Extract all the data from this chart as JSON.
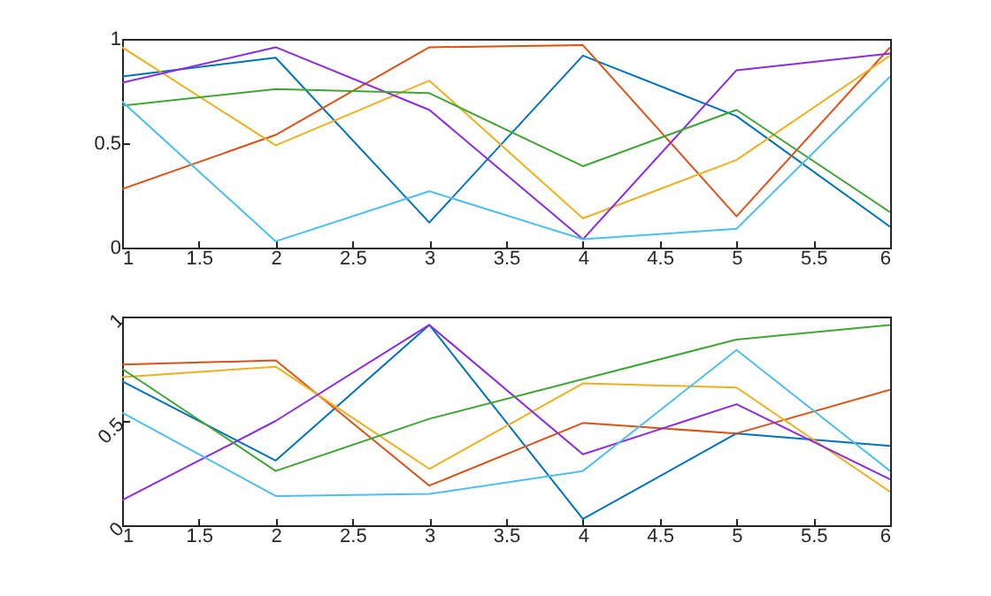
{
  "chart_data": [
    {
      "type": "line",
      "x": [
        1,
        2,
        3,
        4,
        5,
        6
      ],
      "xlim": [
        1,
        6
      ],
      "xticks": [
        1,
        1.5,
        2,
        2.5,
        3,
        3.5,
        4,
        4.5,
        5,
        5.5,
        6
      ],
      "ylim": [
        0,
        1
      ],
      "yticks": [
        0,
        0.5,
        1
      ],
      "grid": false,
      "marker": "none",
      "line_style": "solid",
      "series": [
        {
          "color": "#0072bd",
          "values": [
            0.82,
            0.91,
            0.12,
            0.92,
            0.63,
            0.1
          ]
        },
        {
          "color": "#d95319",
          "values": [
            0.28,
            0.54,
            0.96,
            0.97,
            0.15,
            0.96
          ]
        },
        {
          "color": "#edb120",
          "values": [
            0.96,
            0.49,
            0.8,
            0.14,
            0.42,
            0.92
          ]
        },
        {
          "color": "#8a2be2",
          "values": [
            0.79,
            0.96,
            0.66,
            0.04,
            0.85,
            0.93
          ]
        },
        {
          "color": "#3fa535",
          "values": [
            0.68,
            0.76,
            0.74,
            0.39,
            0.66,
            0.17
          ]
        },
        {
          "color": "#4dbeee",
          "values": [
            0.7,
            0.03,
            0.27,
            0.04,
            0.09,
            0.82
          ]
        }
      ]
    },
    {
      "type": "line",
      "x": [
        1,
        2,
        3,
        4,
        5,
        6
      ],
      "xlim": [
        1,
        6
      ],
      "xticks": [
        1,
        1.5,
        2,
        2.5,
        3,
        3.5,
        4,
        4.5,
        5,
        5.5,
        6
      ],
      "ylim": [
        0,
        1
      ],
      "yticks": [
        0,
        0.5,
        1
      ],
      "grid": false,
      "marker": "none",
      "line_style": "solid",
      "series": [
        {
          "color": "#0072bd",
          "values": [
            0.69,
            0.31,
            0.96,
            0.03,
            0.44,
            0.38
          ]
        },
        {
          "color": "#d95319",
          "values": [
            0.77,
            0.79,
            0.19,
            0.49,
            0.44,
            0.65
          ]
        },
        {
          "color": "#edb120",
          "values": [
            0.71,
            0.76,
            0.27,
            0.68,
            0.66,
            0.16
          ]
        },
        {
          "color": "#8a2be2",
          "values": [
            0.12,
            0.5,
            0.96,
            0.34,
            0.58,
            0.22
          ]
        },
        {
          "color": "#3fa535",
          "values": [
            0.75,
            0.26,
            0.51,
            0.7,
            0.89,
            0.96
          ]
        },
        {
          "color": "#4dbeee",
          "values": [
            0.54,
            0.14,
            0.15,
            0.26,
            0.84,
            0.26
          ]
        }
      ]
    }
  ]
}
